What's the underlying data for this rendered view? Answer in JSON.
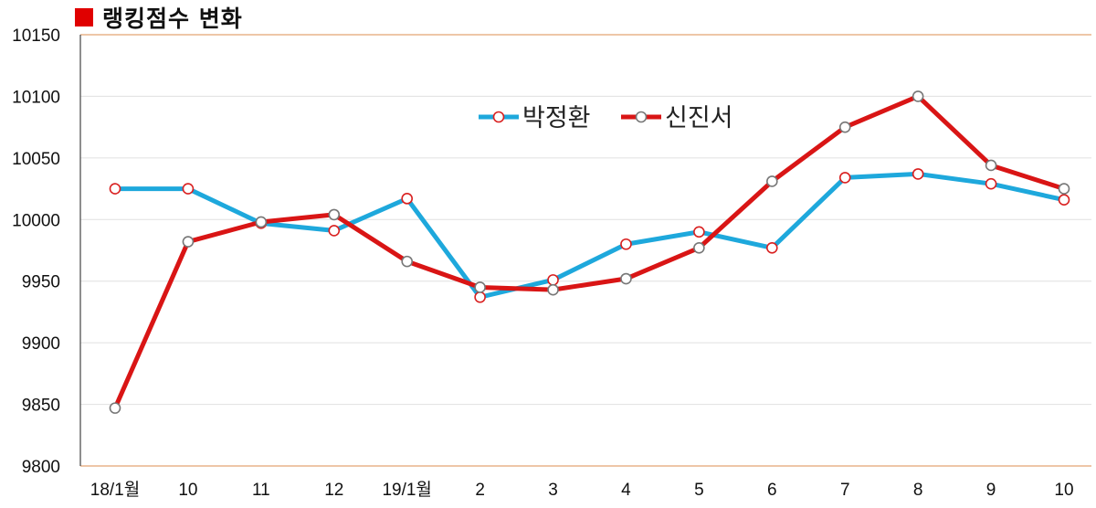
{
  "title": "랭킹점수 변화",
  "colors": {
    "title_square": "#e00000",
    "axis": "#e8b48a",
    "grid": "#e0e0e0"
  },
  "chart_data": {
    "type": "line",
    "categories": [
      "18/1월",
      "10",
      "11",
      "12",
      "19/1월",
      "2",
      "3",
      "4",
      "5",
      "6",
      "7",
      "8",
      "9",
      "10"
    ],
    "ylim": [
      9800,
      10150
    ],
    "yticks": [
      9800,
      9850,
      9900,
      9950,
      10000,
      10050,
      10100,
      10150
    ],
    "grid": true,
    "legend_position": "top-center",
    "series": [
      {
        "name": "박정환",
        "color": "#1ea8dc",
        "marker_stroke": "#d92020",
        "values": [
          10025,
          10025,
          9997,
          9991,
          10017,
          9937,
          9951,
          9980,
          9990,
          9977,
          10034,
          10037,
          10029,
          10016
        ]
      },
      {
        "name": "신진서",
        "color": "#d91515",
        "marker_stroke": "#777777",
        "values": [
          9847,
          9982,
          9998,
          10004,
          9966,
          9945,
          9943,
          9952,
          9977,
          10031,
          10075,
          10100,
          10044,
          10025
        ]
      }
    ]
  }
}
